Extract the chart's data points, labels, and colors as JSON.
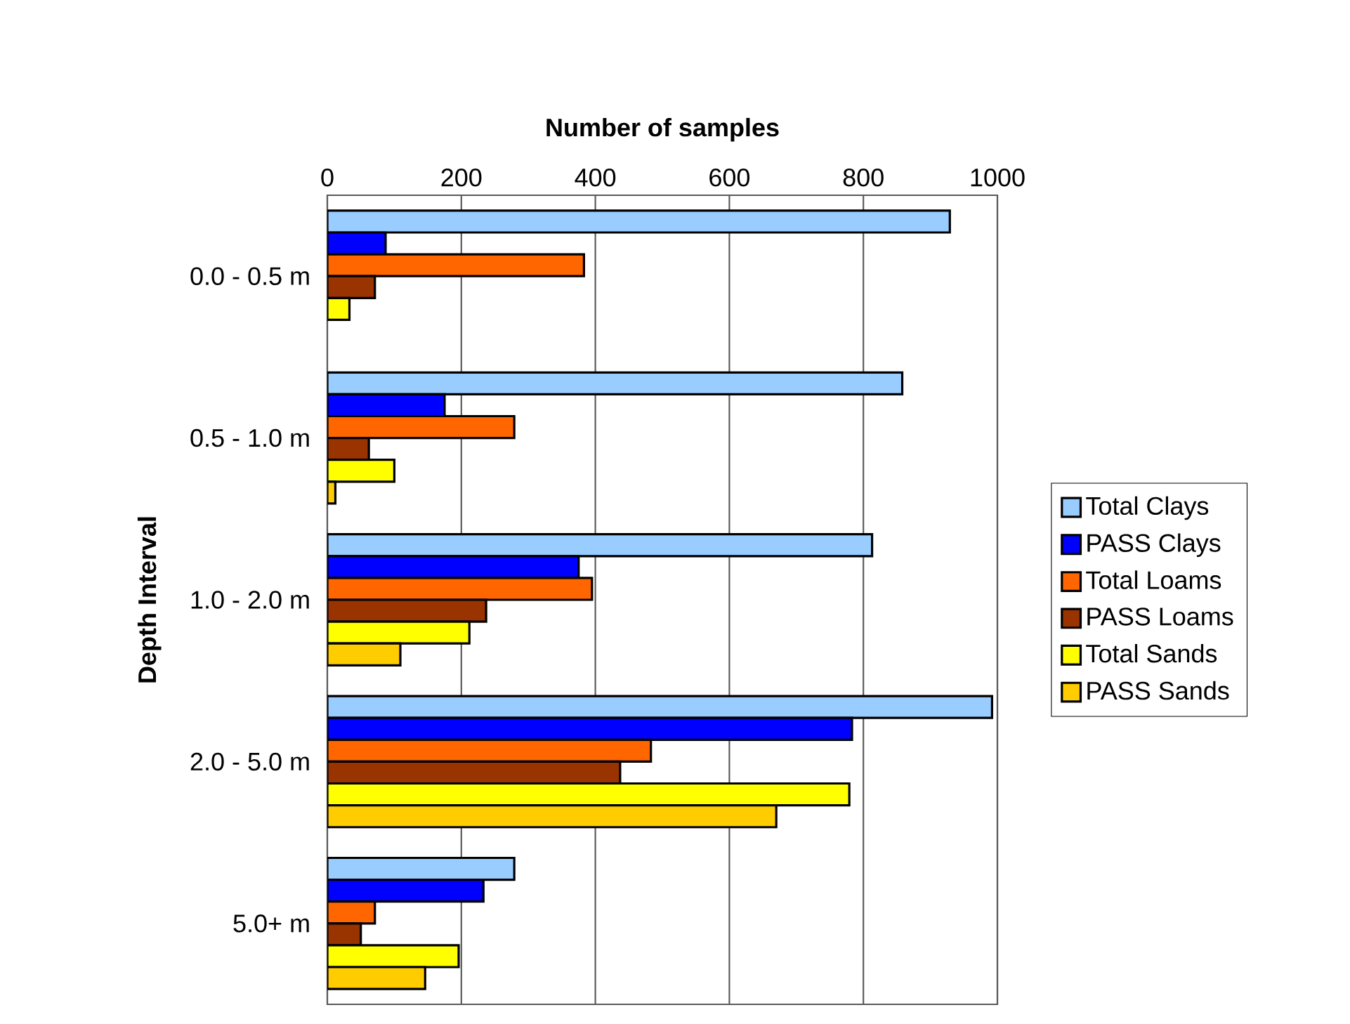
{
  "chart_data": {
    "type": "bar",
    "orientation": "horizontal",
    "xlabel": "Number of samples",
    "ylabel": "Depth Interval",
    "categories": [
      "0.0 - 0.5 m",
      "0.5 - 1.0 m",
      "1.0 - 2.0 m",
      "2.0 - 5.0 m",
      "5.0+ m"
    ],
    "series": [
      {
        "name": "Total Clays",
        "color": "#99ccff",
        "values": [
          929,
          858,
          813,
          992,
          279
        ]
      },
      {
        "name": "PASS Clays",
        "color": "#0000ff",
        "values": [
          87,
          175,
          375,
          783,
          233
        ]
      },
      {
        "name": "Total Loams",
        "color": "#ff6600",
        "values": [
          383,
          279,
          395,
          483,
          71
        ]
      },
      {
        "name": "PASS Loams",
        "color": "#993300",
        "values": [
          71,
          62,
          237,
          437,
          50
        ]
      },
      {
        "name": "Total Sands",
        "color": "#ffff00",
        "values": [
          33,
          100,
          212,
          779,
          196
        ]
      },
      {
        "name": "PASS Sands",
        "color": "#ffcc00",
        "values": [
          null,
          12,
          109,
          670,
          146
        ]
      }
    ],
    "xlim": [
      0,
      1000
    ],
    "xticks": [
      0,
      200,
      400,
      600,
      800,
      1000
    ],
    "grid": "x",
    "legend": "right"
  }
}
